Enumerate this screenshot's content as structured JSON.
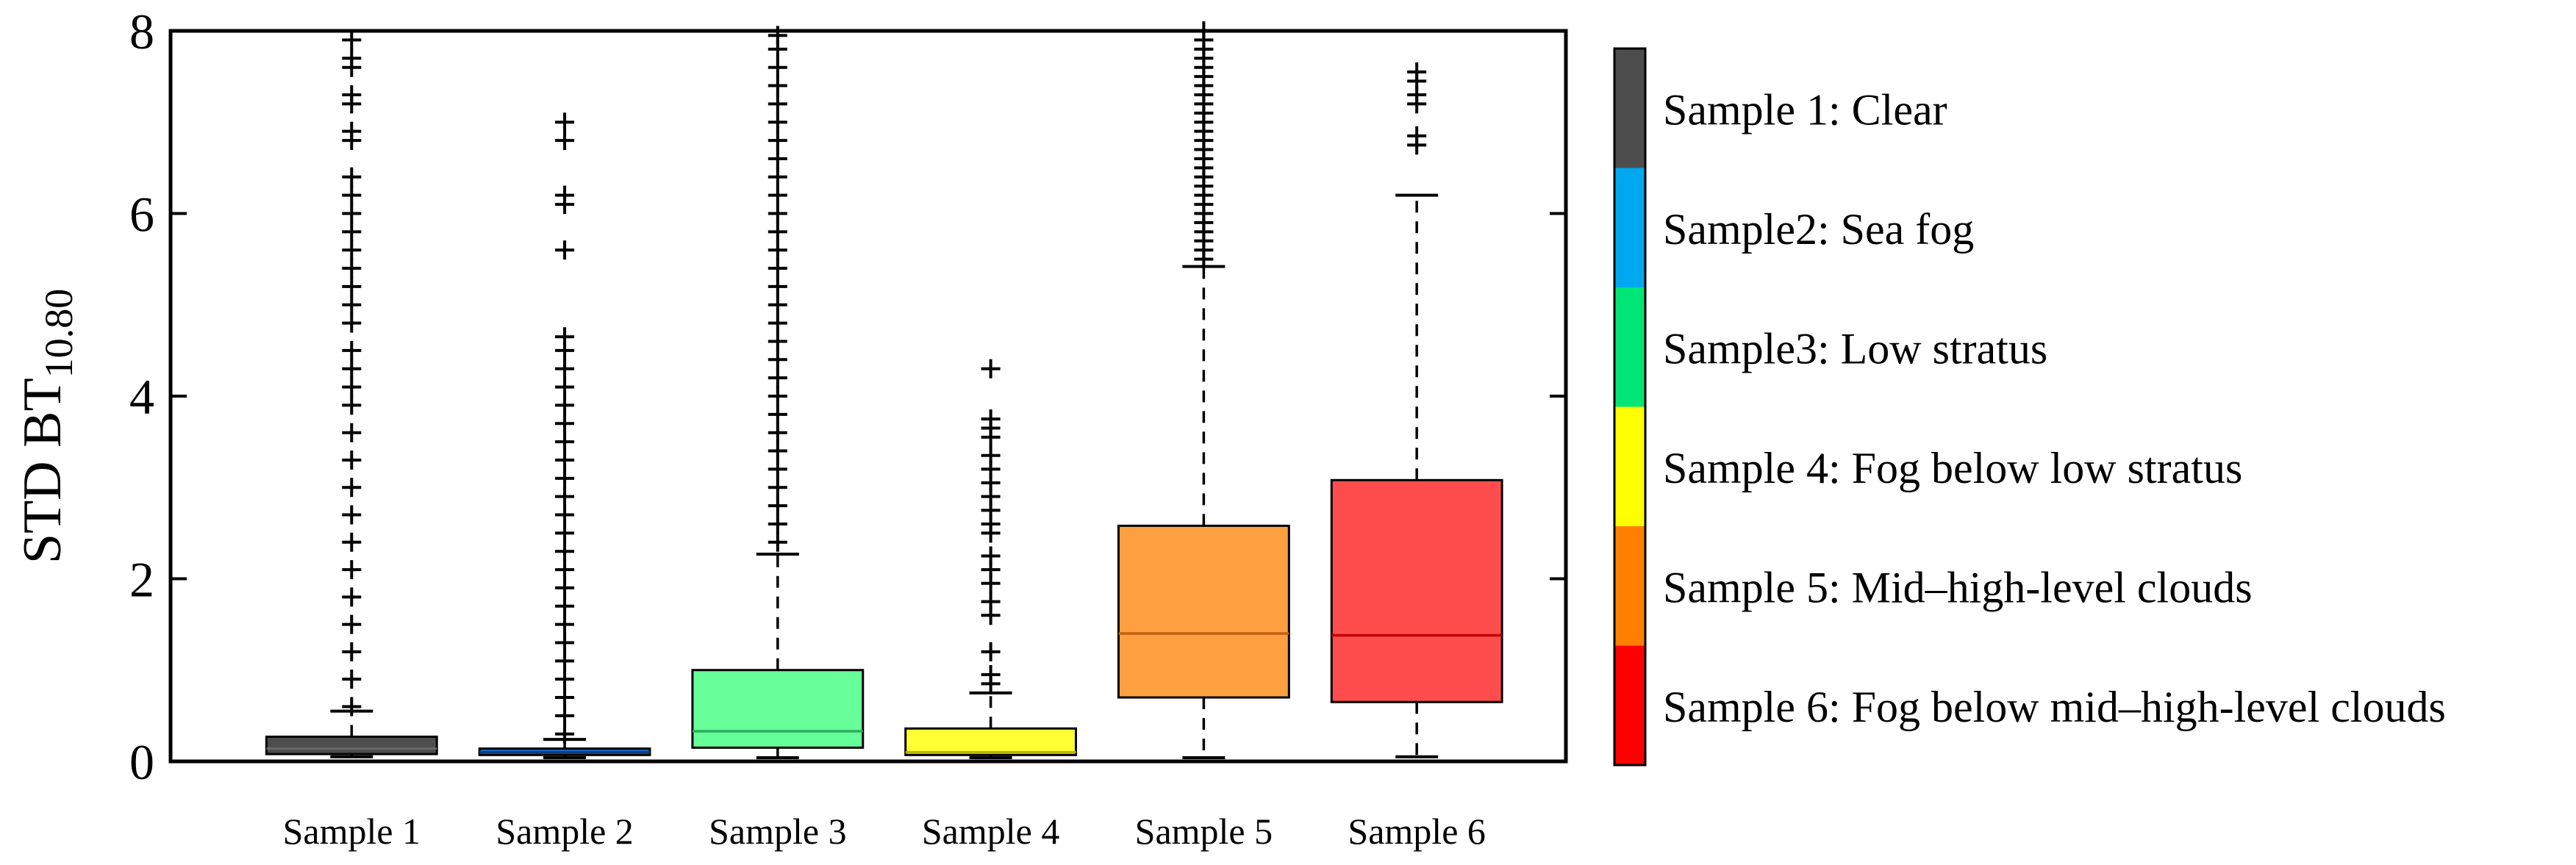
{
  "chart_data": {
    "type": "boxplot",
    "title": "",
    "xlabel": "",
    "ylabel": "STD BT",
    "ylabel_subscript": "10.80",
    "ylim": [
      0,
      8
    ],
    "yticks": [
      0,
      2,
      4,
      6,
      8
    ],
    "categories": [
      "Sample 1",
      "Sample 2",
      "Sample 3",
      "Sample 4",
      "Sample 5",
      "Sample 6"
    ],
    "boxes": [
      {
        "name": "Sample 1",
        "min": 0.05,
        "q1": 0.08,
        "median": 0.14,
        "q3": 0.27,
        "whisker_high": 0.55,
        "color": "#4d4d4d",
        "median_color": "#666666",
        "outliers": [
          0.6,
          0.9,
          1.2,
          1.5,
          1.8,
          2.1,
          2.4,
          2.7,
          3.0,
          3.3,
          3.6,
          3.9,
          4.1,
          4.3,
          4.5,
          4.8,
          5.0,
          5.2,
          5.4,
          5.6,
          5.8,
          6.0,
          6.2,
          6.4,
          6.8,
          6.9,
          7.2,
          7.3,
          7.6,
          7.7,
          7.9
        ]
      },
      {
        "name": "Sample 2",
        "min": 0.04,
        "q1": 0.07,
        "median": 0.1,
        "q3": 0.14,
        "whisker_high": 0.24,
        "color": "#1a6fd1",
        "median_color": "#0a3f80",
        "outliers": [
          0.3,
          0.5,
          0.7,
          0.9,
          1.1,
          1.3,
          1.5,
          1.7,
          1.9,
          2.1,
          2.3,
          2.5,
          2.7,
          2.9,
          3.1,
          3.3,
          3.5,
          3.7,
          3.9,
          4.1,
          4.3,
          4.5,
          4.65,
          5.6,
          6.1,
          6.2,
          6.8,
          7.0
        ]
      },
      {
        "name": "Sample 3",
        "min": 0.04,
        "q1": 0.15,
        "median": 0.33,
        "q3": 1.0,
        "whisker_high": 2.27,
        "color": "#66ff99",
        "median_color": "#2fae5f",
        "outliers": [
          2.4,
          2.6,
          2.8,
          3.0,
          3.2,
          3.4,
          3.6,
          3.8,
          4.0,
          4.2,
          4.4,
          4.6,
          4.8,
          5.0,
          5.2,
          5.4,
          5.6,
          5.8,
          6.0,
          6.2,
          6.4,
          6.6,
          6.8,
          7.0,
          7.2,
          7.4,
          7.6,
          7.8,
          7.95
        ]
      },
      {
        "name": "Sample 4",
        "min": 0.04,
        "q1": 0.07,
        "median": 0.1,
        "q3": 0.36,
        "whisker_high": 0.75,
        "color": "#ffff33",
        "median_color": "#b8b800",
        "outliers": [
          0.85,
          0.95,
          1.2,
          1.6,
          1.75,
          1.95,
          2.1,
          2.25,
          2.5,
          2.6,
          2.75,
          2.9,
          3.05,
          3.2,
          3.35,
          3.55,
          3.65,
          3.75,
          4.3
        ]
      },
      {
        "name": "Sample 5",
        "min": 0.04,
        "q1": 0.7,
        "median": 1.4,
        "q3": 2.58,
        "whisker_high": 5.42,
        "color": "#ffa040",
        "median_color": "#c06010",
        "outliers": [
          5.5,
          5.6,
          5.7,
          5.8,
          5.9,
          6.0,
          6.1,
          6.2,
          6.3,
          6.4,
          6.5,
          6.6,
          6.7,
          6.8,
          6.9,
          7.0,
          7.1,
          7.2,
          7.3,
          7.4,
          7.5,
          7.6,
          7.7,
          7.8,
          7.9,
          8.0
        ]
      },
      {
        "name": "Sample 6",
        "min": 0.05,
        "q1": 0.65,
        "median": 1.38,
        "q3": 3.08,
        "whisker_high": 6.2,
        "color": "#ff4d4d",
        "median_color": "#c00000",
        "outliers": [
          6.75,
          6.85,
          7.2,
          7.3,
          7.45,
          7.55
        ]
      }
    ],
    "colorbar": [
      {
        "label": "Sample 1: Clear",
        "color": "#4d4d4d"
      },
      {
        "label": "Sample2: Sea fog",
        "color": "#00a8f0"
      },
      {
        "label": "Sample3: Low stratus",
        "color": "#00e676"
      },
      {
        "label": "Sample 4: Fog below low stratus",
        "color": "#ffff00"
      },
      {
        "label": "Sample 5: Mid–high-level clouds",
        "color": "#ff8000"
      },
      {
        "label": "Sample 6: Fog below mid–high-level clouds",
        "color": "#ff0000"
      }
    ]
  }
}
